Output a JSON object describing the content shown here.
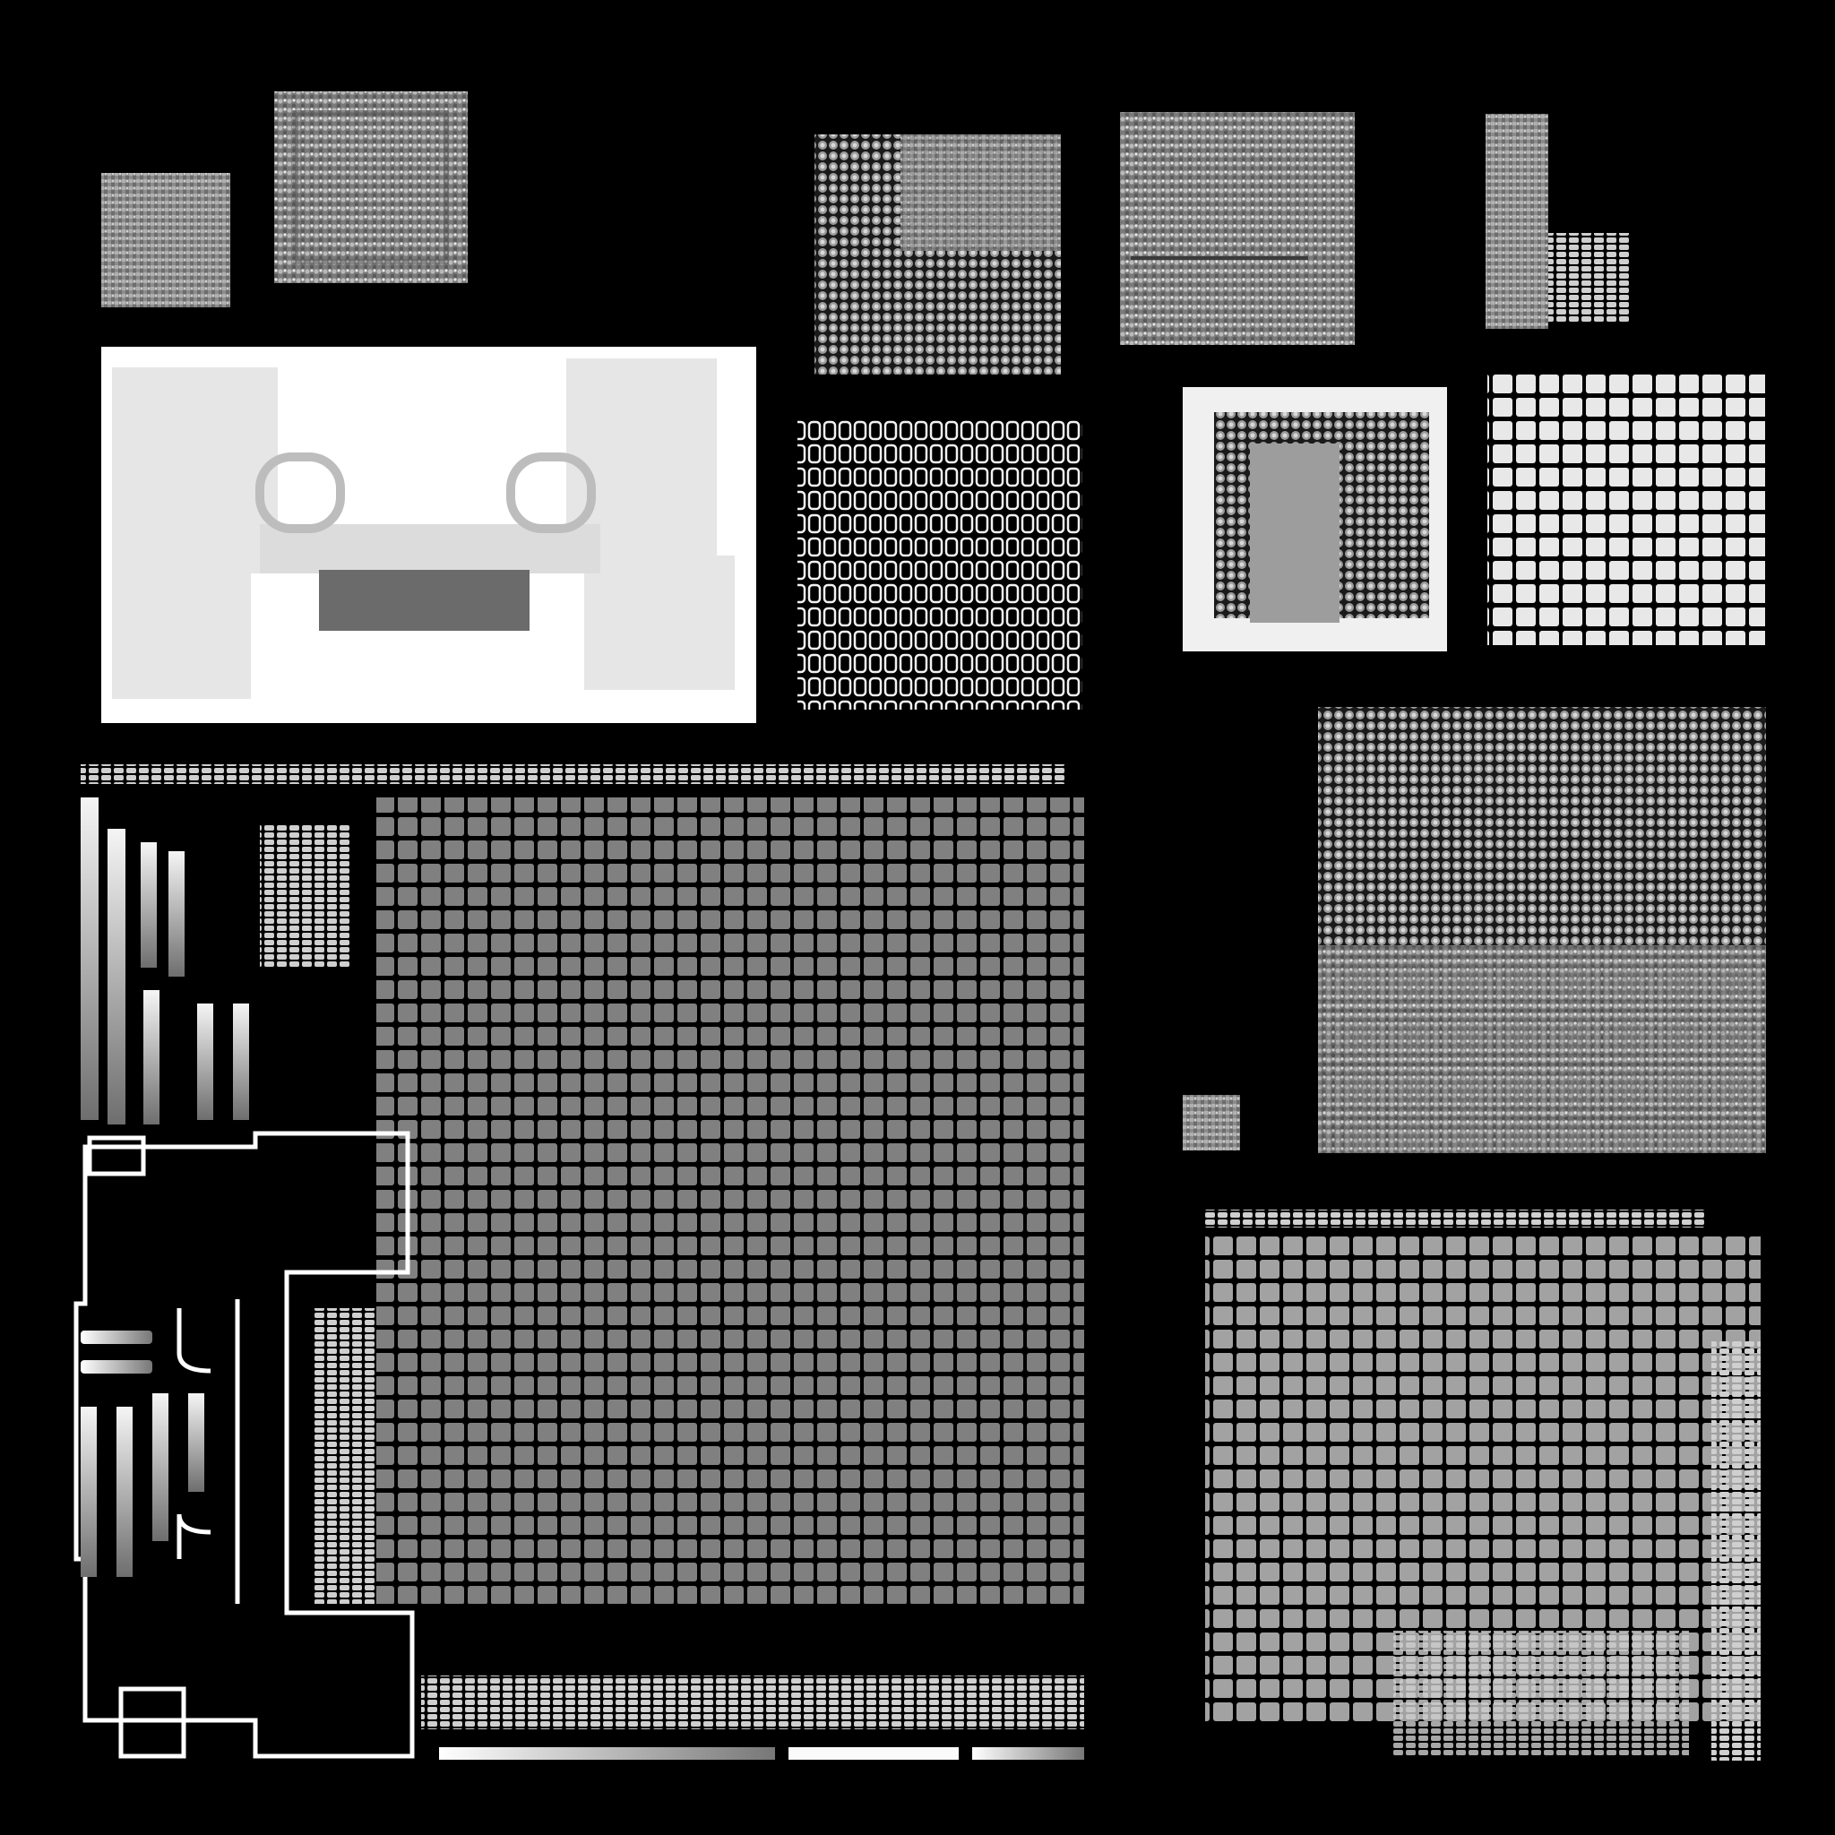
{
  "image": {
    "background": "#000000",
    "texture_color": "#ffffff",
    "description_type": "baked lightmap / ambient-occlusion texture atlas"
  }
}
